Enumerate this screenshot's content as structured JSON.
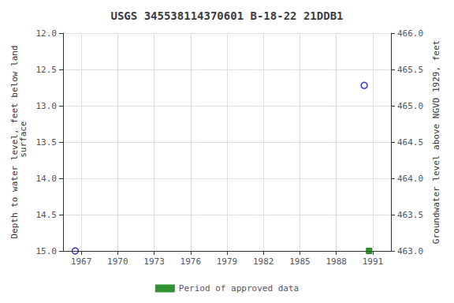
{
  "chart_data": {
    "type": "scatter",
    "title": "USGS 345538114370601 B-18-22 21DDB1",
    "ylabel": "Depth to water level, feet below land\n surface",
    "y2label": "Groundwater level above NGVD 1929, feet",
    "xlim": [
      1965.5,
      1992.5
    ],
    "xticks": [
      1967,
      1970,
      1973,
      1976,
      1979,
      1982,
      1985,
      1988,
      1991
    ],
    "ylim": [
      15.0,
      12.0
    ],
    "yticks": [
      {
        "value": 12.0,
        "label": "12.0"
      },
      {
        "value": 12.5,
        "label": "12.5"
      },
      {
        "value": 13.0,
        "label": "13.0"
      },
      {
        "value": 13.5,
        "label": "13.5"
      },
      {
        "value": 14.0,
        "label": "14.0"
      },
      {
        "value": 14.5,
        "label": "14.5"
      },
      {
        "value": 15.0,
        "label": "15.0"
      }
    ],
    "y2lim": [
      463.0,
      466.0
    ],
    "y2ticks": [
      {
        "value": 463.0,
        "label": "463.0"
      },
      {
        "value": 463.5,
        "label": "463.5"
      },
      {
        "value": 464.0,
        "label": "464.0"
      },
      {
        "value": 464.5,
        "label": "464.5"
      },
      {
        "value": 465.0,
        "label": "465.0"
      },
      {
        "value": 465.5,
        "label": "465.5"
      },
      {
        "value": 466.0,
        "label": "466.0"
      }
    ],
    "grid": true,
    "legend": "bottom",
    "series": [
      {
        "color": "#0000cc",
        "marker": "open_circle",
        "x": [
          1966.5,
          1990.3
        ],
        "values": [
          15.0,
          12.72
        ]
      },
      {
        "name": "Period of approved data",
        "color": "#007700",
        "marker": "square",
        "x": [
          1990.7
        ],
        "values": [
          15.0
        ]
      }
    ]
  }
}
